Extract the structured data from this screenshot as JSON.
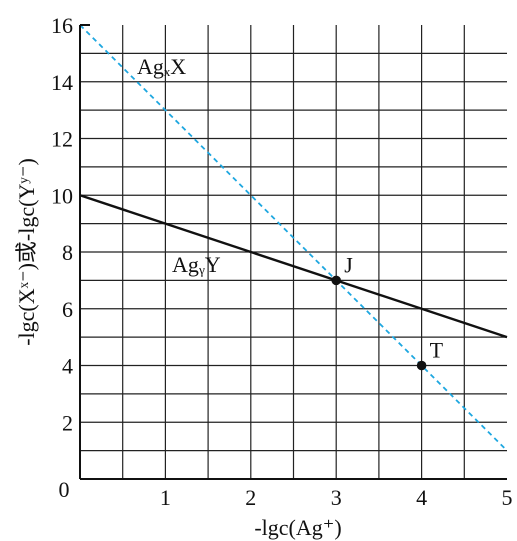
{
  "chart_data": {
    "type": "line",
    "xlabel": "-lgc(Ag⁺)",
    "ylabel": "-lgc(Xˣ⁻)或-lgc(Yʸ⁻)",
    "xlim": [
      0,
      5
    ],
    "ylim": [
      0,
      16
    ],
    "x_ticks": [
      0,
      1,
      2,
      3,
      4,
      5
    ],
    "x_tick_labels": [
      "0",
      "1",
      "2",
      "3",
      "4",
      "5"
    ],
    "y_ticks": [
      0,
      2,
      4,
      6,
      8,
      10,
      12,
      14,
      16
    ],
    "y_tick_labels": [
      "0",
      "2",
      "4",
      "6",
      "8",
      "10",
      "12",
      "14",
      "16"
    ],
    "grid": true,
    "grid_x_step": 0.5,
    "grid_y_step": 1,
    "series": [
      {
        "name": "AgₓX",
        "style": "dashed",
        "color": "#1ea7e0",
        "x": [
          0,
          5
        ],
        "y": [
          16,
          1
        ]
      },
      {
        "name": "AgᵧY",
        "style": "solid",
        "color": "#111111",
        "x": [
          0,
          5
        ],
        "y": [
          10,
          5
        ]
      }
    ],
    "points": [
      {
        "label": "J",
        "x": 3,
        "y": 7
      },
      {
        "label": "T",
        "x": 4,
        "y": 4
      }
    ]
  }
}
